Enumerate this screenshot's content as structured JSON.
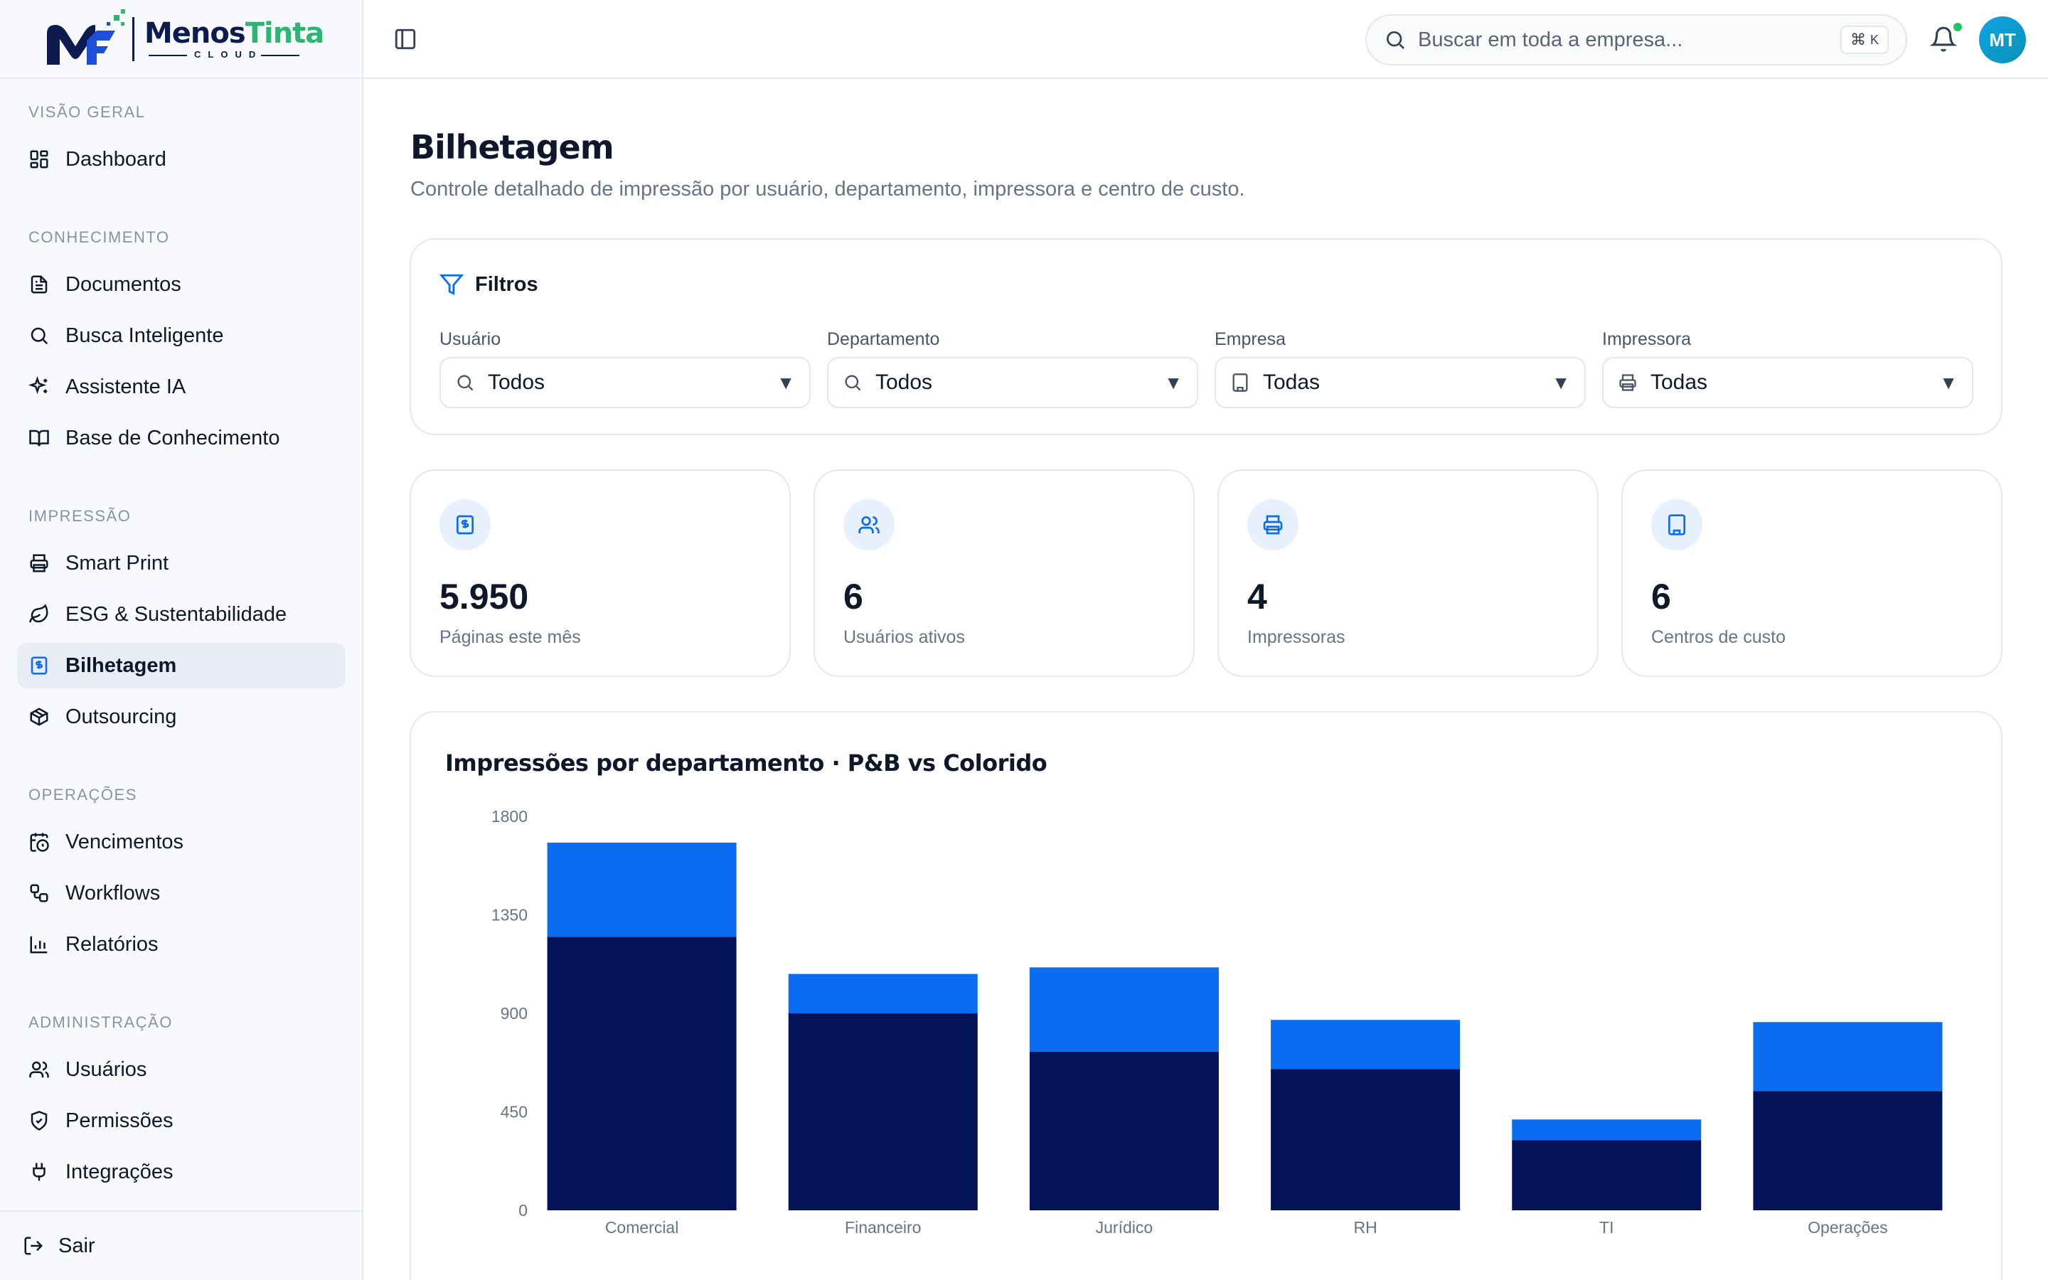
{
  "brand": {
    "name_part1": "Menos",
    "name_part2": "Tinta",
    "subtitle": "CLOUD",
    "primary_color": "#0d1b4f",
    "accent_color": "#2bb673"
  },
  "sidebar": {
    "sections": [
      {
        "label": "VISÃO GERAL",
        "items": [
          {
            "label": "Dashboard",
            "icon": "dashboard-icon"
          }
        ]
      },
      {
        "label": "CONHECIMENTO",
        "items": [
          {
            "label": "Documentos",
            "icon": "file-text-icon"
          },
          {
            "label": "Busca Inteligente",
            "icon": "search-icon"
          },
          {
            "label": "Assistente IA",
            "icon": "sparkles-icon"
          },
          {
            "label": "Base de Conhecimento",
            "icon": "book-open-icon"
          }
        ]
      },
      {
        "label": "IMPRESSÃO",
        "items": [
          {
            "label": "Smart Print",
            "icon": "printer-icon"
          },
          {
            "label": "ESG & Sustentabilidade",
            "icon": "leaf-icon"
          },
          {
            "label": "Bilhetagem",
            "icon": "receipt-icon",
            "active": true
          },
          {
            "label": "Outsourcing",
            "icon": "package-icon"
          }
        ]
      },
      {
        "label": "OPERAÇÕES",
        "items": [
          {
            "label": "Vencimentos",
            "icon": "calendar-clock-icon"
          },
          {
            "label": "Workflows",
            "icon": "workflow-icon"
          },
          {
            "label": "Relatórios",
            "icon": "bar-chart-icon"
          }
        ]
      },
      {
        "label": "ADMINISTRAÇÃO",
        "items": [
          {
            "label": "Usuários",
            "icon": "users-icon"
          },
          {
            "label": "Permissões",
            "icon": "shield-check-icon"
          },
          {
            "label": "Integrações",
            "icon": "plug-icon"
          }
        ]
      }
    ],
    "logout_label": "Sair"
  },
  "topbar": {
    "search_placeholder": "Buscar em toda a empresa...",
    "shortcut_symbol": "⌘",
    "shortcut_key": "K",
    "avatar_initials": "MT",
    "notification_dot_color": "#22c55e"
  },
  "page": {
    "title": "Bilhetagem",
    "subtitle": "Controle detalhado de impressão por usuário, departamento, impressora e centro de custo."
  },
  "filters": {
    "title": "Filtros",
    "fields": [
      {
        "label": "Usuário",
        "value": "Todos",
        "icon": "search-icon"
      },
      {
        "label": "Departamento",
        "value": "Todos",
        "icon": "search-icon"
      },
      {
        "label": "Empresa",
        "value": "Todas",
        "icon": "building-icon"
      },
      {
        "label": "Impressora",
        "value": "Todas",
        "icon": "printer-icon"
      }
    ]
  },
  "stats": [
    {
      "value": "5.950",
      "caption": "Páginas este mês",
      "icon": "receipt-icon"
    },
    {
      "value": "6",
      "caption": "Usuários ativos",
      "icon": "users-icon"
    },
    {
      "value": "4",
      "caption": "Impressoras",
      "icon": "printer-icon"
    },
    {
      "value": "6",
      "caption": "Centros de custo",
      "icon": "building-icon"
    }
  ],
  "chart_data": {
    "type": "bar",
    "stacked": true,
    "title": "Impressões por departamento · P&B vs Colorido",
    "categories": [
      "Comercial",
      "Financeiro",
      "Jurídico",
      "RH",
      "TI",
      "Operações"
    ],
    "series": [
      {
        "values": [
          1250,
          900,
          725,
          645,
          320,
          545
        ],
        "color": "#041257"
      },
      {
        "values": [
          430,
          180,
          385,
          225,
          95,
          315
        ],
        "color": "#0a6cf0"
      }
    ],
    "ylim": [
      0,
      1800
    ],
    "yticks": [
      0,
      450,
      900,
      1350,
      1800
    ],
    "grid": false,
    "legend": "none"
  }
}
